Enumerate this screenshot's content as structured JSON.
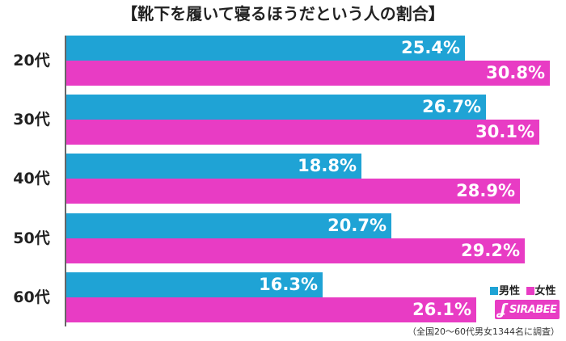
{
  "chart_data": {
    "type": "bar",
    "orientation": "horizontal",
    "title": "【靴下を履いて寝るほうだという人の割合】",
    "categories": [
      "20代",
      "30代",
      "40代",
      "50代",
      "60代"
    ],
    "series": [
      {
        "name": "男性",
        "color": "#1fa3d5",
        "values": [
          25.4,
          26.7,
          18.8,
          20.7,
          16.3
        ],
        "labels": [
          "25.4%",
          "26.7%",
          "18.8%",
          "20.7%",
          "16.3%"
        ]
      },
      {
        "name": "女性",
        "color": "#e83cc4",
        "values": [
          30.8,
          30.1,
          28.9,
          29.2,
          26.1
        ],
        "labels": [
          "30.8%",
          "30.1%",
          "28.9%",
          "29.2%",
          "26.1%"
        ]
      }
    ],
    "xlim": [
      0,
      31.5
    ],
    "grid": false,
    "legend_position": "bottom-right"
  },
  "legend": {
    "male_marker": "■",
    "male": "男性",
    "female_marker": "■",
    "female": "女性"
  },
  "logo": {
    "mark": "ʆ",
    "text": "SIRABEE"
  },
  "footnote": "（全国20～60代男女1344名に調査）"
}
